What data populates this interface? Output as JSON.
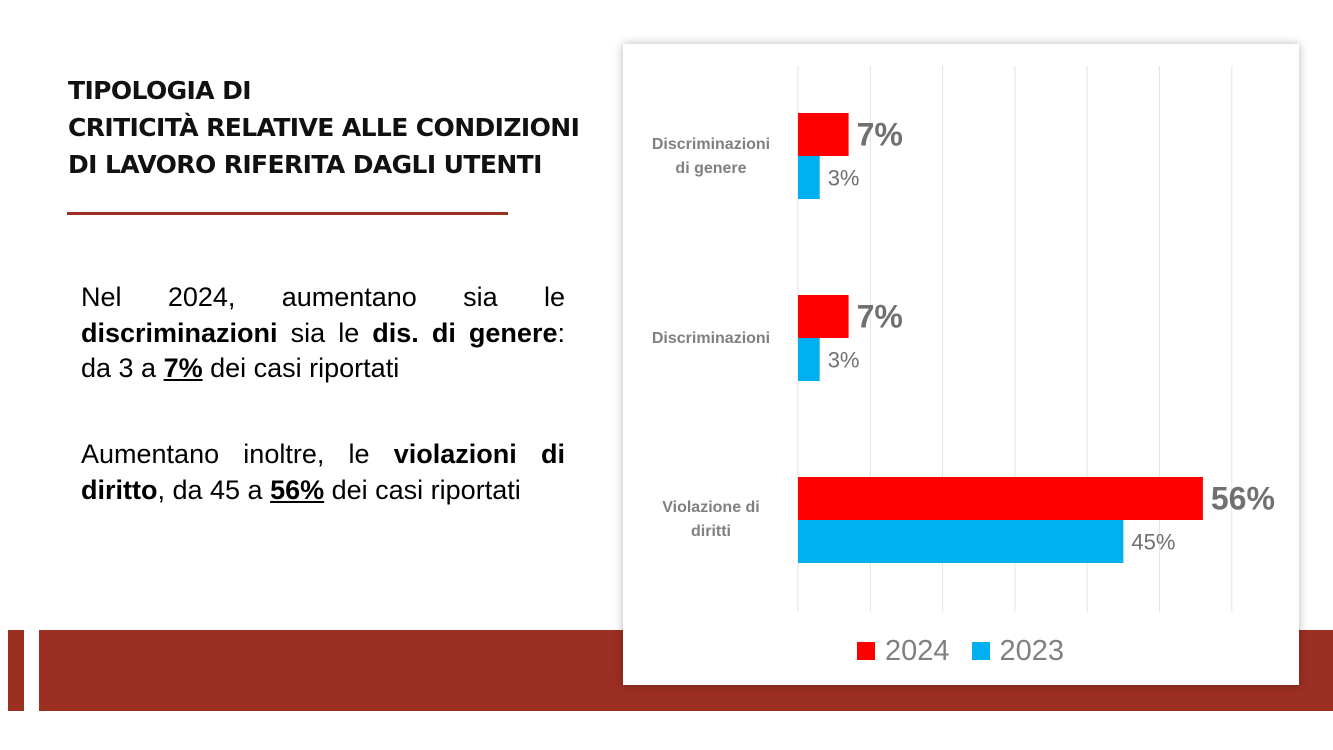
{
  "slide": {
    "title_lines": [
      "TIPOLOGIA DI",
      "CRITICITÀ RELATIVE ALLE CONDIZIONI",
      "DI LAVORO RIFERITA DAGLI UTENTI"
    ],
    "paragraph1": {
      "t1": "Nel 2024, aumentano sia le ",
      "b1": "discriminazioni",
      "t2": " sia le ",
      "b2": "dis. di genere",
      "t3": ": da 3 a ",
      "u1": "7%",
      "t4": " dei casi riportati"
    },
    "paragraph2": {
      "t1": "Aumentano inoltre, le ",
      "b1": "violazioni di diritto",
      "t2": ", da 45 a ",
      "u1": "56%",
      "t3": " dei casi riportati"
    }
  },
  "colors": {
    "accent_band": "#9b2f22",
    "series_2024": "#ff0000",
    "series_2023": "#00b0f0",
    "label_gray": "#808080"
  },
  "chart_data": {
    "type": "bar",
    "orientation": "horizontal",
    "title": "",
    "xlabel": "",
    "ylabel": "",
    "categories": [
      "Discriminazioni di genere",
      "Discriminazioni",
      "Violazione di diritti"
    ],
    "category_labels": [
      [
        "Discriminazioni",
        "di genere"
      ],
      [
        "Discriminazioni"
      ],
      [
        "Violazione di",
        "diritti"
      ]
    ],
    "series": [
      {
        "name": "2024",
        "values": [
          7,
          7,
          56
        ],
        "labels": [
          "7%",
          "7%",
          "56%"
        ],
        "color": "#ff0000"
      },
      {
        "name": "2023",
        "values": [
          3,
          3,
          45
        ],
        "labels": [
          "3%",
          "3%",
          "45%"
        ],
        "color": "#00b0f0"
      }
    ],
    "xlim": [
      0,
      60
    ],
    "grid": true,
    "legend": "bottom"
  }
}
